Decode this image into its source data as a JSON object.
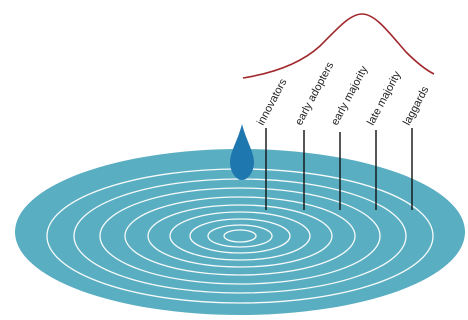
{
  "diagram": {
    "labels": [
      "innovators",
      "early adopters",
      "early majority",
      "late majority",
      "laggards"
    ]
  },
  "colors": {
    "water": "#5aaec2",
    "ripple": "#ffffff",
    "droplet": "#1f77b0",
    "curve": "#a0282d",
    "stem": "#111111",
    "text": "#222222"
  },
  "icons": {
    "droplet": "water-drop-icon"
  }
}
